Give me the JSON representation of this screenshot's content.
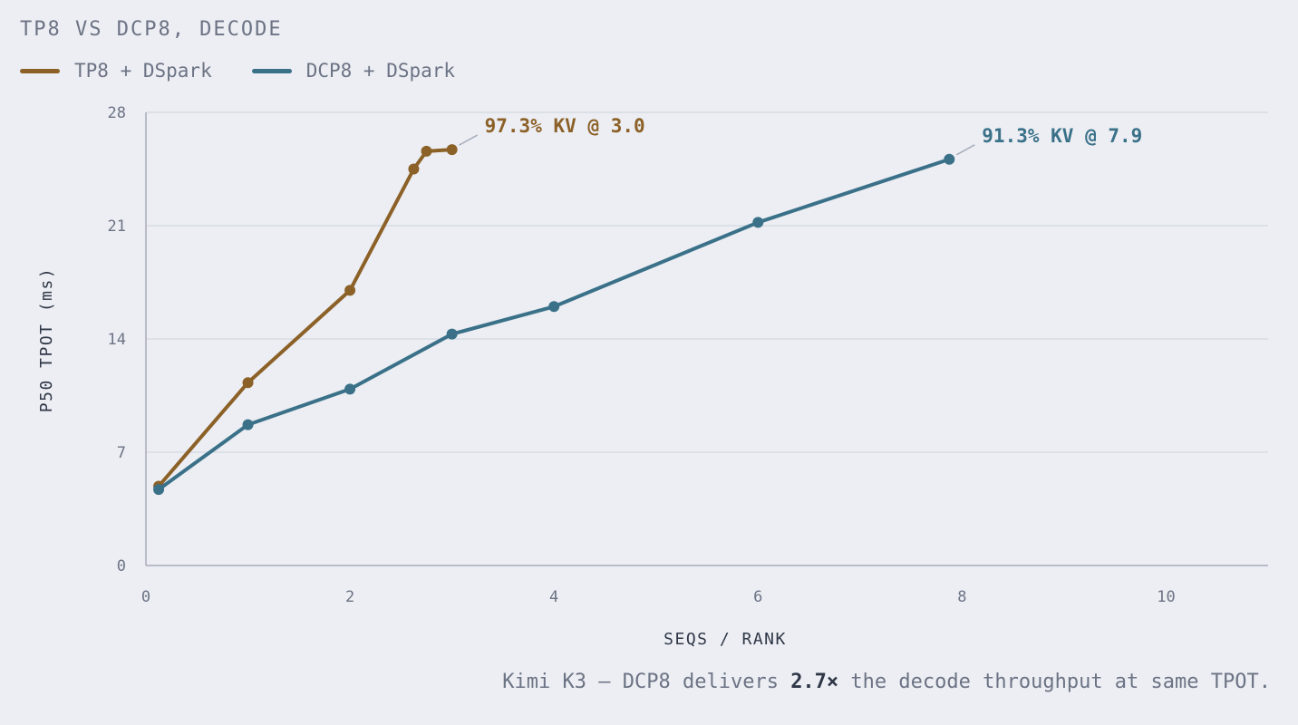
{
  "chart_data": {
    "type": "line",
    "title": "TP8 VS DCP8, DECODE",
    "xlabel": "SEQS / RANK",
    "ylabel": "P50 TPOT (ms)",
    "xlim": [
      0,
      11
    ],
    "ylim": [
      0,
      28
    ],
    "xticks": [
      0,
      2,
      4,
      6,
      8,
      10
    ],
    "yticks": [
      0,
      7,
      14,
      21,
      28
    ],
    "grid": "horizontal",
    "legend_position": "top-left",
    "series": [
      {
        "name": "TP8 + DSpark",
        "color": "#8c6128",
        "x": [
          0.125,
          1,
          2,
          2.625,
          2.75,
          3
        ],
        "y": [
          4.9,
          11.3,
          17.0,
          24.5,
          25.6,
          25.7
        ],
        "annotation": "97.3% KV @ 3.0"
      },
      {
        "name": "DCP8 + DSpark",
        "color": "#3a7189",
        "x": [
          0.125,
          1,
          2,
          3,
          4,
          6,
          7.875
        ],
        "y": [
          4.7,
          8.7,
          10.9,
          14.3,
          16.0,
          21.2,
          25.1
        ],
        "annotation": "91.3% KV @ 7.9"
      }
    ]
  },
  "caption": {
    "prefix": "Kimi K3 — DCP8 delivers ",
    "highlight": "2.7×",
    "suffix": " the decode throughput at same TPOT."
  }
}
